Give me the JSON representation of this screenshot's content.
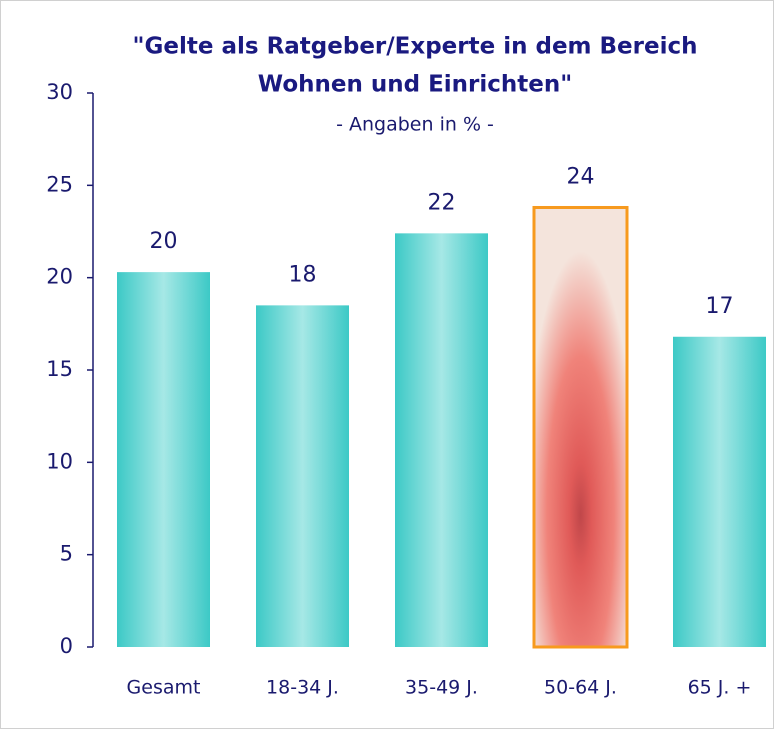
{
  "chart_data": {
    "type": "bar",
    "title": [
      "\"Gelte als Ratgeber/Experte in dem Bereich",
      "Wohnen und Einrichten\""
    ],
    "subtitle": "- Angaben in % -",
    "categories": [
      "Gesamt",
      "18-34 J.",
      "35-49 J.",
      "50-64 J.",
      "65 J. +"
    ],
    "values": [
      20.3,
      18.5,
      22.4,
      23.8,
      16.8
    ],
    "value_labels": [
      "20",
      "18",
      "22",
      "24",
      "17"
    ],
    "color": "#3cc9c6",
    "highlight": 3,
    "highlight_color": "#f79a1e",
    "ylim": [
      0,
      30
    ],
    "yticks": [
      0,
      5,
      10,
      15,
      20,
      25,
      30
    ],
    "grid": false
  }
}
